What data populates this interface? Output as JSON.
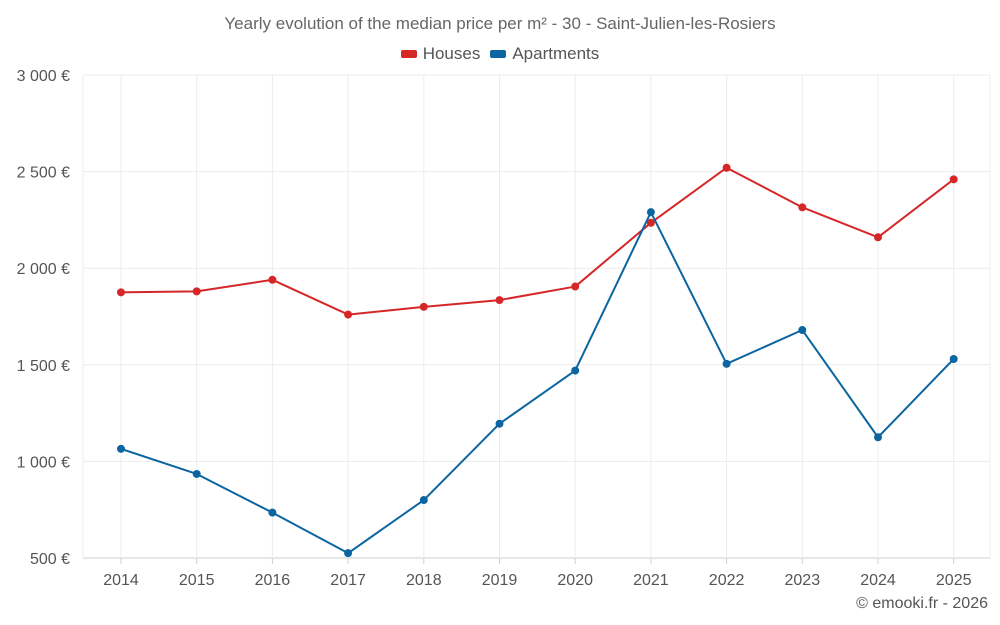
{
  "chart_data": {
    "type": "line",
    "title": "Yearly evolution of the median price per m² - 30 - Saint-Julien-les-Rosiers",
    "xlabel": "",
    "ylabel": "",
    "categories": [
      "2014",
      "2015",
      "2016",
      "2017",
      "2018",
      "2019",
      "2020",
      "2021",
      "2022",
      "2023",
      "2024",
      "2025"
    ],
    "ylim": [
      500,
      3000
    ],
    "yticks": [
      500,
      1000,
      1500,
      2000,
      2500,
      3000
    ],
    "ytick_labels": [
      "500 €",
      "1 000 €",
      "1 500 €",
      "2 000 €",
      "2 500 €",
      "3 000 €"
    ],
    "grid": true,
    "legend_position": "top-center",
    "series": [
      {
        "name": "Houses",
        "color": "#d62728",
        "values": [
          1875,
          1880,
          1940,
          1760,
          1800,
          1835,
          1905,
          2235,
          2520,
          2315,
          2160,
          2460
        ]
      },
      {
        "name": "Apartments",
        "color": "#0b65a0",
        "values": [
          1065,
          935,
          735,
          525,
          800,
          1195,
          1470,
          2290,
          1505,
          1680,
          1125,
          1530
        ]
      }
    ]
  },
  "credit": "© emooki.fr - 2026"
}
